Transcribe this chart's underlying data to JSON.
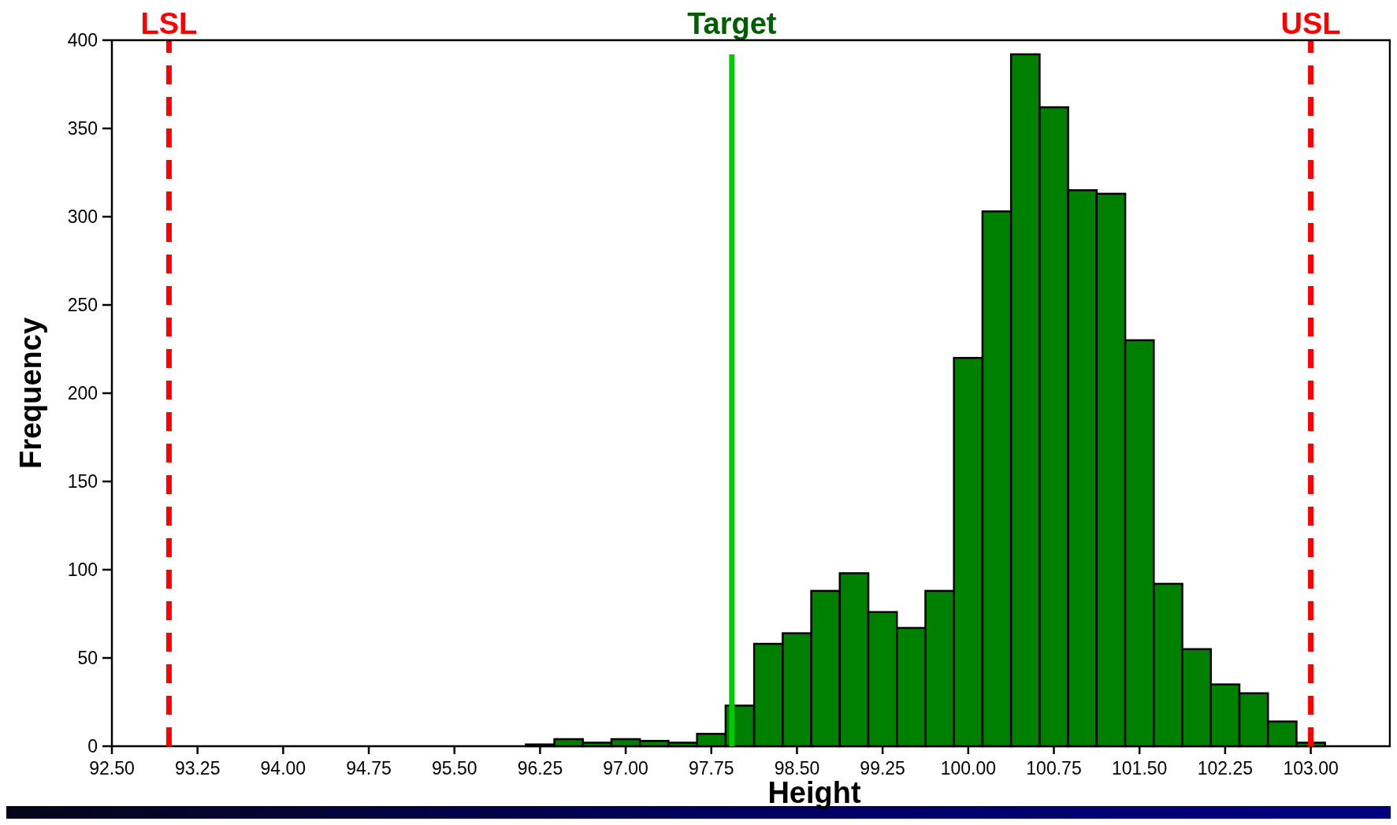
{
  "chart_data": {
    "type": "histogram",
    "xlabel": "Height",
    "ylabel": "Frequency",
    "bins": [
      96.125,
      96.375,
      96.625,
      96.875,
      97.125,
      97.375,
      97.625,
      97.875,
      98.125,
      98.375,
      98.625,
      98.875,
      99.125,
      99.375,
      99.625,
      99.875,
      100.125,
      100.375,
      100.625,
      100.875,
      101.125,
      101.375,
      101.625,
      101.875,
      102.125,
      102.375,
      102.625,
      102.875,
      103.125
    ],
    "values": [
      1,
      4,
      2,
      4,
      3,
      2,
      7,
      23,
      58,
      64,
      88,
      98,
      76,
      67,
      88,
      220,
      303,
      392,
      362,
      315,
      313,
      230,
      92,
      55,
      35,
      30,
      14,
      2
    ],
    "color": "#008000",
    "xlim": [
      92.5,
      103.7
    ],
    "ylim": [
      0,
      400
    ],
    "xticks": [
      {
        "value": 92.5,
        "label": "92.50"
      },
      {
        "value": 93.25,
        "label": "93.25"
      },
      {
        "value": 94,
        "label": "94.00"
      },
      {
        "value": 94.75,
        "label": "94.75"
      },
      {
        "value": 95.5,
        "label": "95.50"
      },
      {
        "value": 96.25,
        "label": "96.25"
      },
      {
        "value": 97,
        "label": "97.00"
      },
      {
        "value": 97.75,
        "label": "97.75"
      },
      {
        "value": 98.5,
        "label": "98.50"
      },
      {
        "value": 99.25,
        "label": "99.25"
      },
      {
        "value": 100,
        "label": "100.00"
      },
      {
        "value": 100.75,
        "label": "100.75"
      },
      {
        "value": 101.5,
        "label": "101.50"
      },
      {
        "value": 102.25,
        "label": "102.25"
      },
      {
        "value": 103,
        "label": "103.00"
      }
    ],
    "yticks": [
      0,
      50,
      100,
      150,
      200,
      250,
      300,
      350,
      400
    ],
    "grid": false,
    "ref_lines": [
      {
        "axis": "x",
        "value": 93.0,
        "label": "LSL",
        "color": "#ff0000",
        "line_style": "dashed"
      },
      {
        "axis": "x",
        "value": 97.93,
        "label": "Target",
        "color": "#00cc00",
        "line_style": "solid"
      },
      {
        "axis": "x",
        "value": 103.0,
        "label": "USL",
        "color": "#ff0000",
        "line_style": "dashed"
      }
    ]
  }
}
